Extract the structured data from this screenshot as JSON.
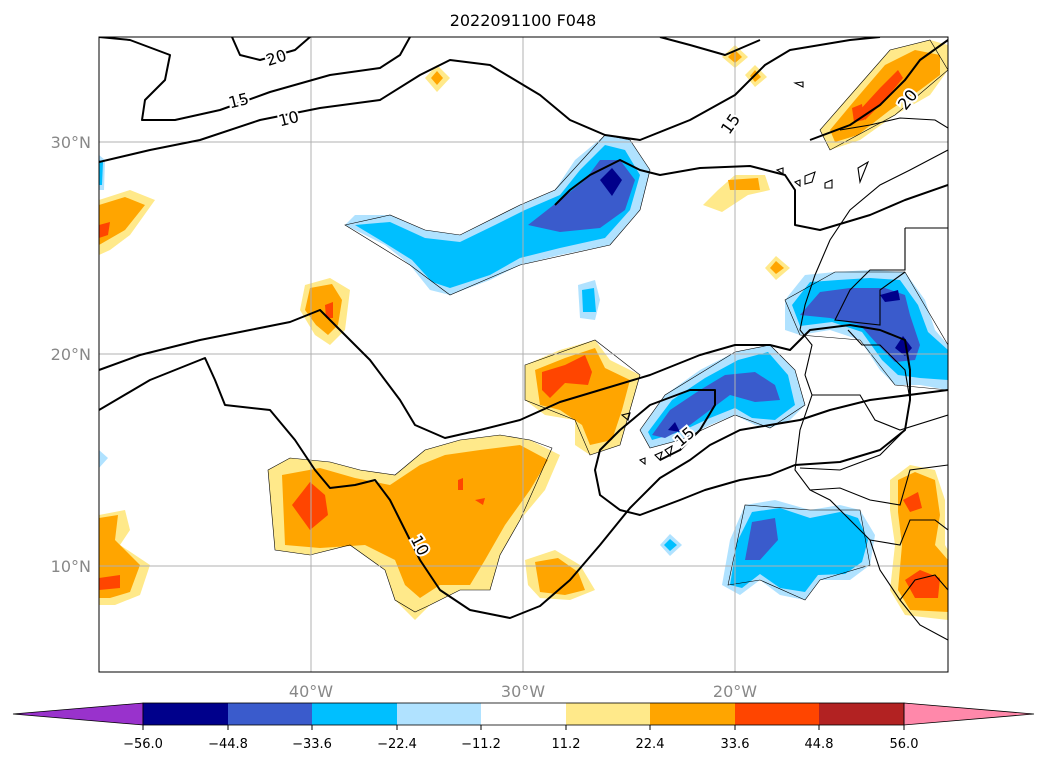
{
  "title": "2022091100 F048",
  "lat_labels": [
    "30°N",
    "20°N",
    "10°N"
  ],
  "lon_labels": [
    "40°W",
    "30°W",
    "20°W"
  ],
  "contour_labels": [
    "20",
    "15",
    "10",
    "15",
    "20",
    "15",
    "10"
  ],
  "colorbar": {
    "ticks": [
      "−56.0",
      "−44.8",
      "−33.6",
      "−22.4",
      "−11.2",
      "11.2",
      "22.4",
      "33.6",
      "44.8",
      "56.0"
    ],
    "colors": [
      "#9932cc",
      "#00008b",
      "#3a5bcc",
      "#00bfff",
      "#b0e2ff",
      "#ffffff",
      "#ffe98a",
      "#ffa500",
      "#ff4500",
      "#b22222",
      "#ff88aa"
    ]
  },
  "palette": {
    "deep_blue": "#00008b",
    "blue": "#3a5bcc",
    "cyan": "#00bfff",
    "light_cyan": "#b0e2ff",
    "yellow": "#ffe98a",
    "orange": "#ffa500",
    "red_orange": "#ff4500"
  }
}
